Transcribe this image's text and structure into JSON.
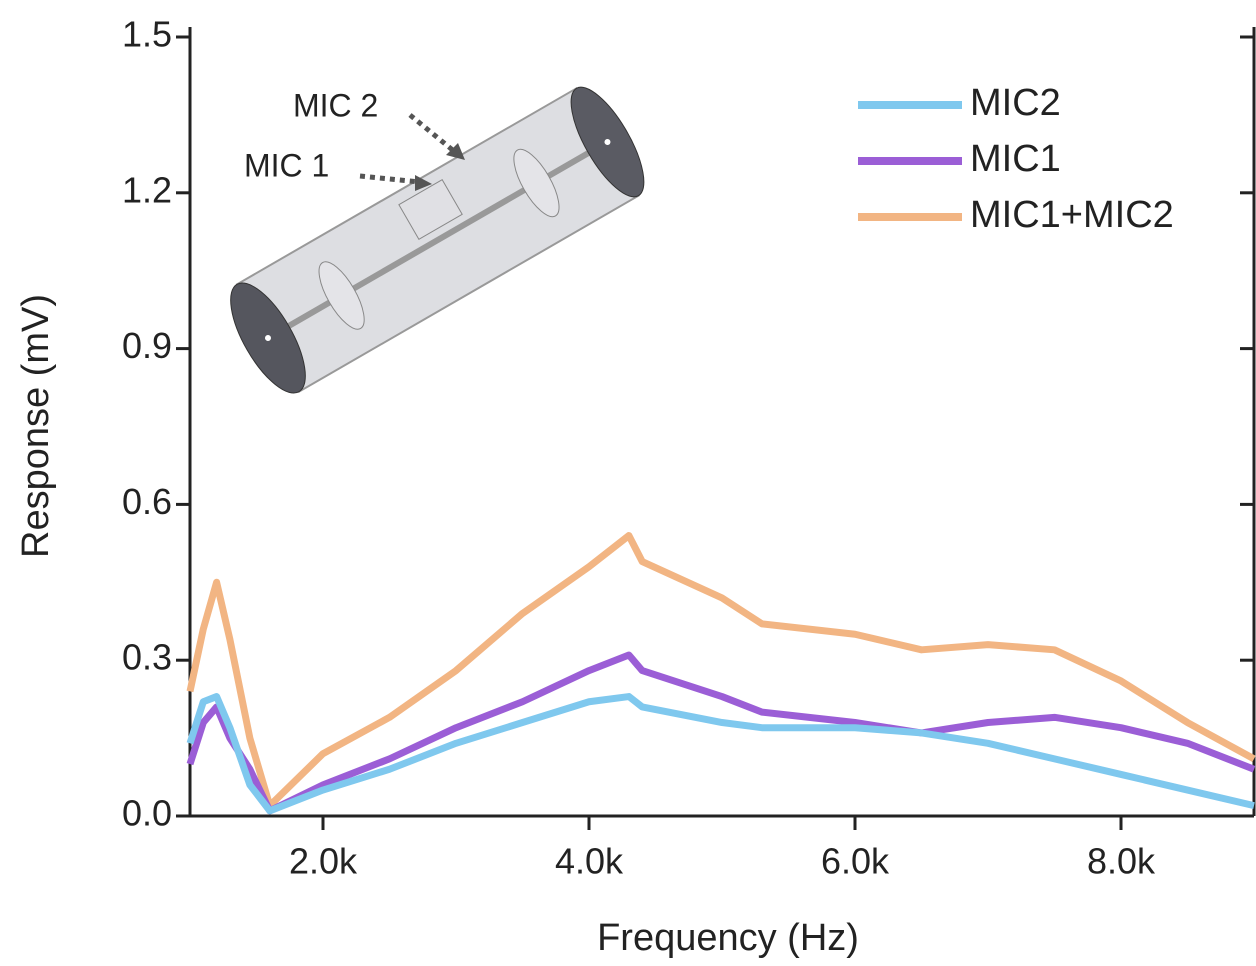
{
  "chart_data": {
    "type": "line",
    "xlabel": "Frequency (Hz)",
    "ylabel": "Response (mV)",
    "annotations": [
      "MIC 2",
      "MIC 1"
    ],
    "x": [
      1000,
      1100,
      1200,
      1300,
      1450,
      1600,
      2000,
      2500,
      3000,
      3500,
      4000,
      4300,
      4400,
      5000,
      5300,
      6000,
      6500,
      7000,
      7500,
      8000,
      8500,
      9000
    ],
    "series": [
      {
        "name": "MIC2",
        "color": "#7fc8ee",
        "values": [
          0.14,
          0.22,
          0.23,
          0.17,
          0.06,
          0.01,
          0.05,
          0.09,
          0.14,
          0.18,
          0.22,
          0.23,
          0.21,
          0.18,
          0.17,
          0.17,
          0.16,
          0.14,
          0.11,
          0.08,
          0.05,
          0.02
        ]
      },
      {
        "name": "MIC1",
        "color": "#9b5ed6",
        "values": [
          0.1,
          0.18,
          0.21,
          0.15,
          0.09,
          0.01,
          0.06,
          0.11,
          0.17,
          0.22,
          0.28,
          0.31,
          0.28,
          0.23,
          0.2,
          0.18,
          0.16,
          0.18,
          0.19,
          0.17,
          0.14,
          0.09
        ]
      },
      {
        "name": "MIC1+MIC2",
        "color": "#f2b583",
        "values": [
          0.24,
          0.36,
          0.45,
          0.34,
          0.15,
          0.02,
          0.12,
          0.19,
          0.28,
          0.39,
          0.48,
          0.54,
          0.49,
          0.42,
          0.37,
          0.35,
          0.32,
          0.33,
          0.32,
          0.26,
          0.18,
          0.11
        ]
      }
    ],
    "xlim": [
      1000,
      9000
    ],
    "xticks": [
      {
        "value": 2000,
        "label": "2.0k"
      },
      {
        "value": 4000,
        "label": "4.0k"
      },
      {
        "value": 6000,
        "label": "6.0k"
      },
      {
        "value": 8000,
        "label": "8.0k"
      }
    ],
    "ylim": [
      0,
      1.5
    ],
    "yticks": [
      {
        "value": 0,
        "label": "0.0"
      },
      0.3,
      0.6,
      0.9,
      1.2,
      1.5
    ],
    "legend": "upper right"
  }
}
